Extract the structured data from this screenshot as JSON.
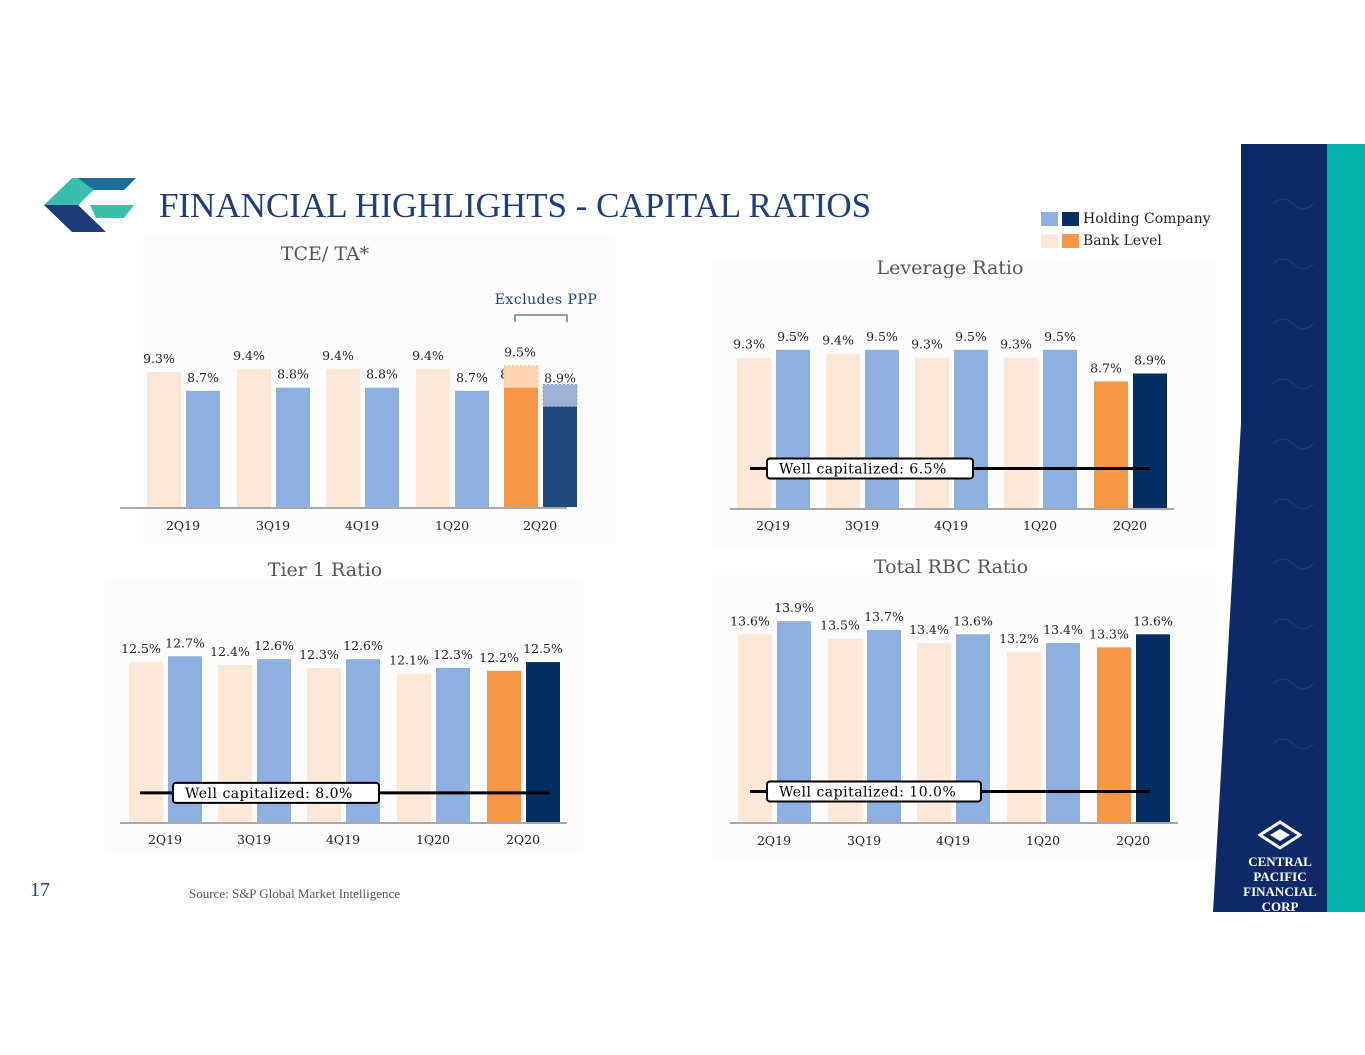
{
  "header": {
    "title": "FINANCIAL HIGHLIGHTS - CAPITAL RATIOS"
  },
  "legend": {
    "items": [
      {
        "label": "Holding Company",
        "colors": [
          "#8db0e0",
          "#012f62"
        ]
      },
      {
        "label": "Bank Level",
        "colors": [
          "#fde8d7",
          "#f79646"
        ]
      }
    ]
  },
  "footer": {
    "page_number": "17",
    "source": "Source: S&P Global Market Intelligence"
  },
  "brand": {
    "line1": "CENTRAL PACIFIC",
    "line2": "FINANCIAL CORP"
  },
  "colors": {
    "bank": "#fde8d7",
    "holding": "#8db0e0",
    "bank_latest": "#f79646",
    "holding_latest": "#012f62",
    "holding_latest_tce": "#1f497d",
    "title_blue": "#1f3f7a",
    "teal": "#00b2a9"
  },
  "chart_data": [
    {
      "id": "tce",
      "type": "bar",
      "title": "TCE/ TA*",
      "categories": [
        "2Q19",
        "3Q19",
        "4Q19",
        "1Q20",
        "2Q20"
      ],
      "series": [
        {
          "name": "Bank Level",
          "values": [
            9.3,
            9.4,
            9.4,
            9.4,
            8.8
          ]
        },
        {
          "name": "Holding Company",
          "values": [
            8.7,
            8.8,
            8.8,
            8.7,
            8.2
          ]
        }
      ],
      "excludes_ppp": {
        "label": "Excludes PPP",
        "bank": 9.5,
        "holding": 8.9
      },
      "ylim": [
        5.0,
        10.0
      ]
    },
    {
      "id": "leverage",
      "type": "bar",
      "title": "Leverage Ratio",
      "categories": [
        "2Q19",
        "3Q19",
        "4Q19",
        "1Q20",
        "2Q20"
      ],
      "series": [
        {
          "name": "Bank Level",
          "values": [
            9.3,
            9.4,
            9.3,
            9.3,
            8.7
          ]
        },
        {
          "name": "Holding Company",
          "values": [
            9.5,
            9.5,
            9.5,
            9.5,
            8.9
          ]
        }
      ],
      "threshold": {
        "label": "Well capitalized: 6.5%",
        "value": 6.5
      },
      "ylim": [
        5.5,
        10.0
      ]
    },
    {
      "id": "tier1",
      "type": "bar",
      "title": "Tier 1 Ratio",
      "categories": [
        "2Q19",
        "3Q19",
        "4Q19",
        "1Q20",
        "2Q20"
      ],
      "series": [
        {
          "name": "Bank Level",
          "values": [
            12.5,
            12.4,
            12.3,
            12.1,
            12.2
          ]
        },
        {
          "name": "Holding Company",
          "values": [
            12.7,
            12.6,
            12.6,
            12.3,
            12.5
          ]
        }
      ],
      "threshold": {
        "label": "Well capitalized: 8.0%",
        "value": 8.0
      },
      "ylim": [
        7.0,
        13.5
      ]
    },
    {
      "id": "rbc",
      "type": "bar",
      "title": "Total RBC Ratio",
      "categories": [
        "2Q19",
        "3Q19",
        "4Q19",
        "1Q20",
        "2Q20"
      ],
      "series": [
        {
          "name": "Bank Level",
          "values": [
            13.6,
            13.5,
            13.4,
            13.2,
            13.3
          ]
        },
        {
          "name": "Holding Company",
          "values": [
            13.9,
            13.7,
            13.6,
            13.4,
            13.6
          ]
        }
      ],
      "threshold": {
        "label": "Well capitalized: 10.0%",
        "value": 10.0
      },
      "ylim": [
        9.3,
        14.5
      ]
    }
  ]
}
